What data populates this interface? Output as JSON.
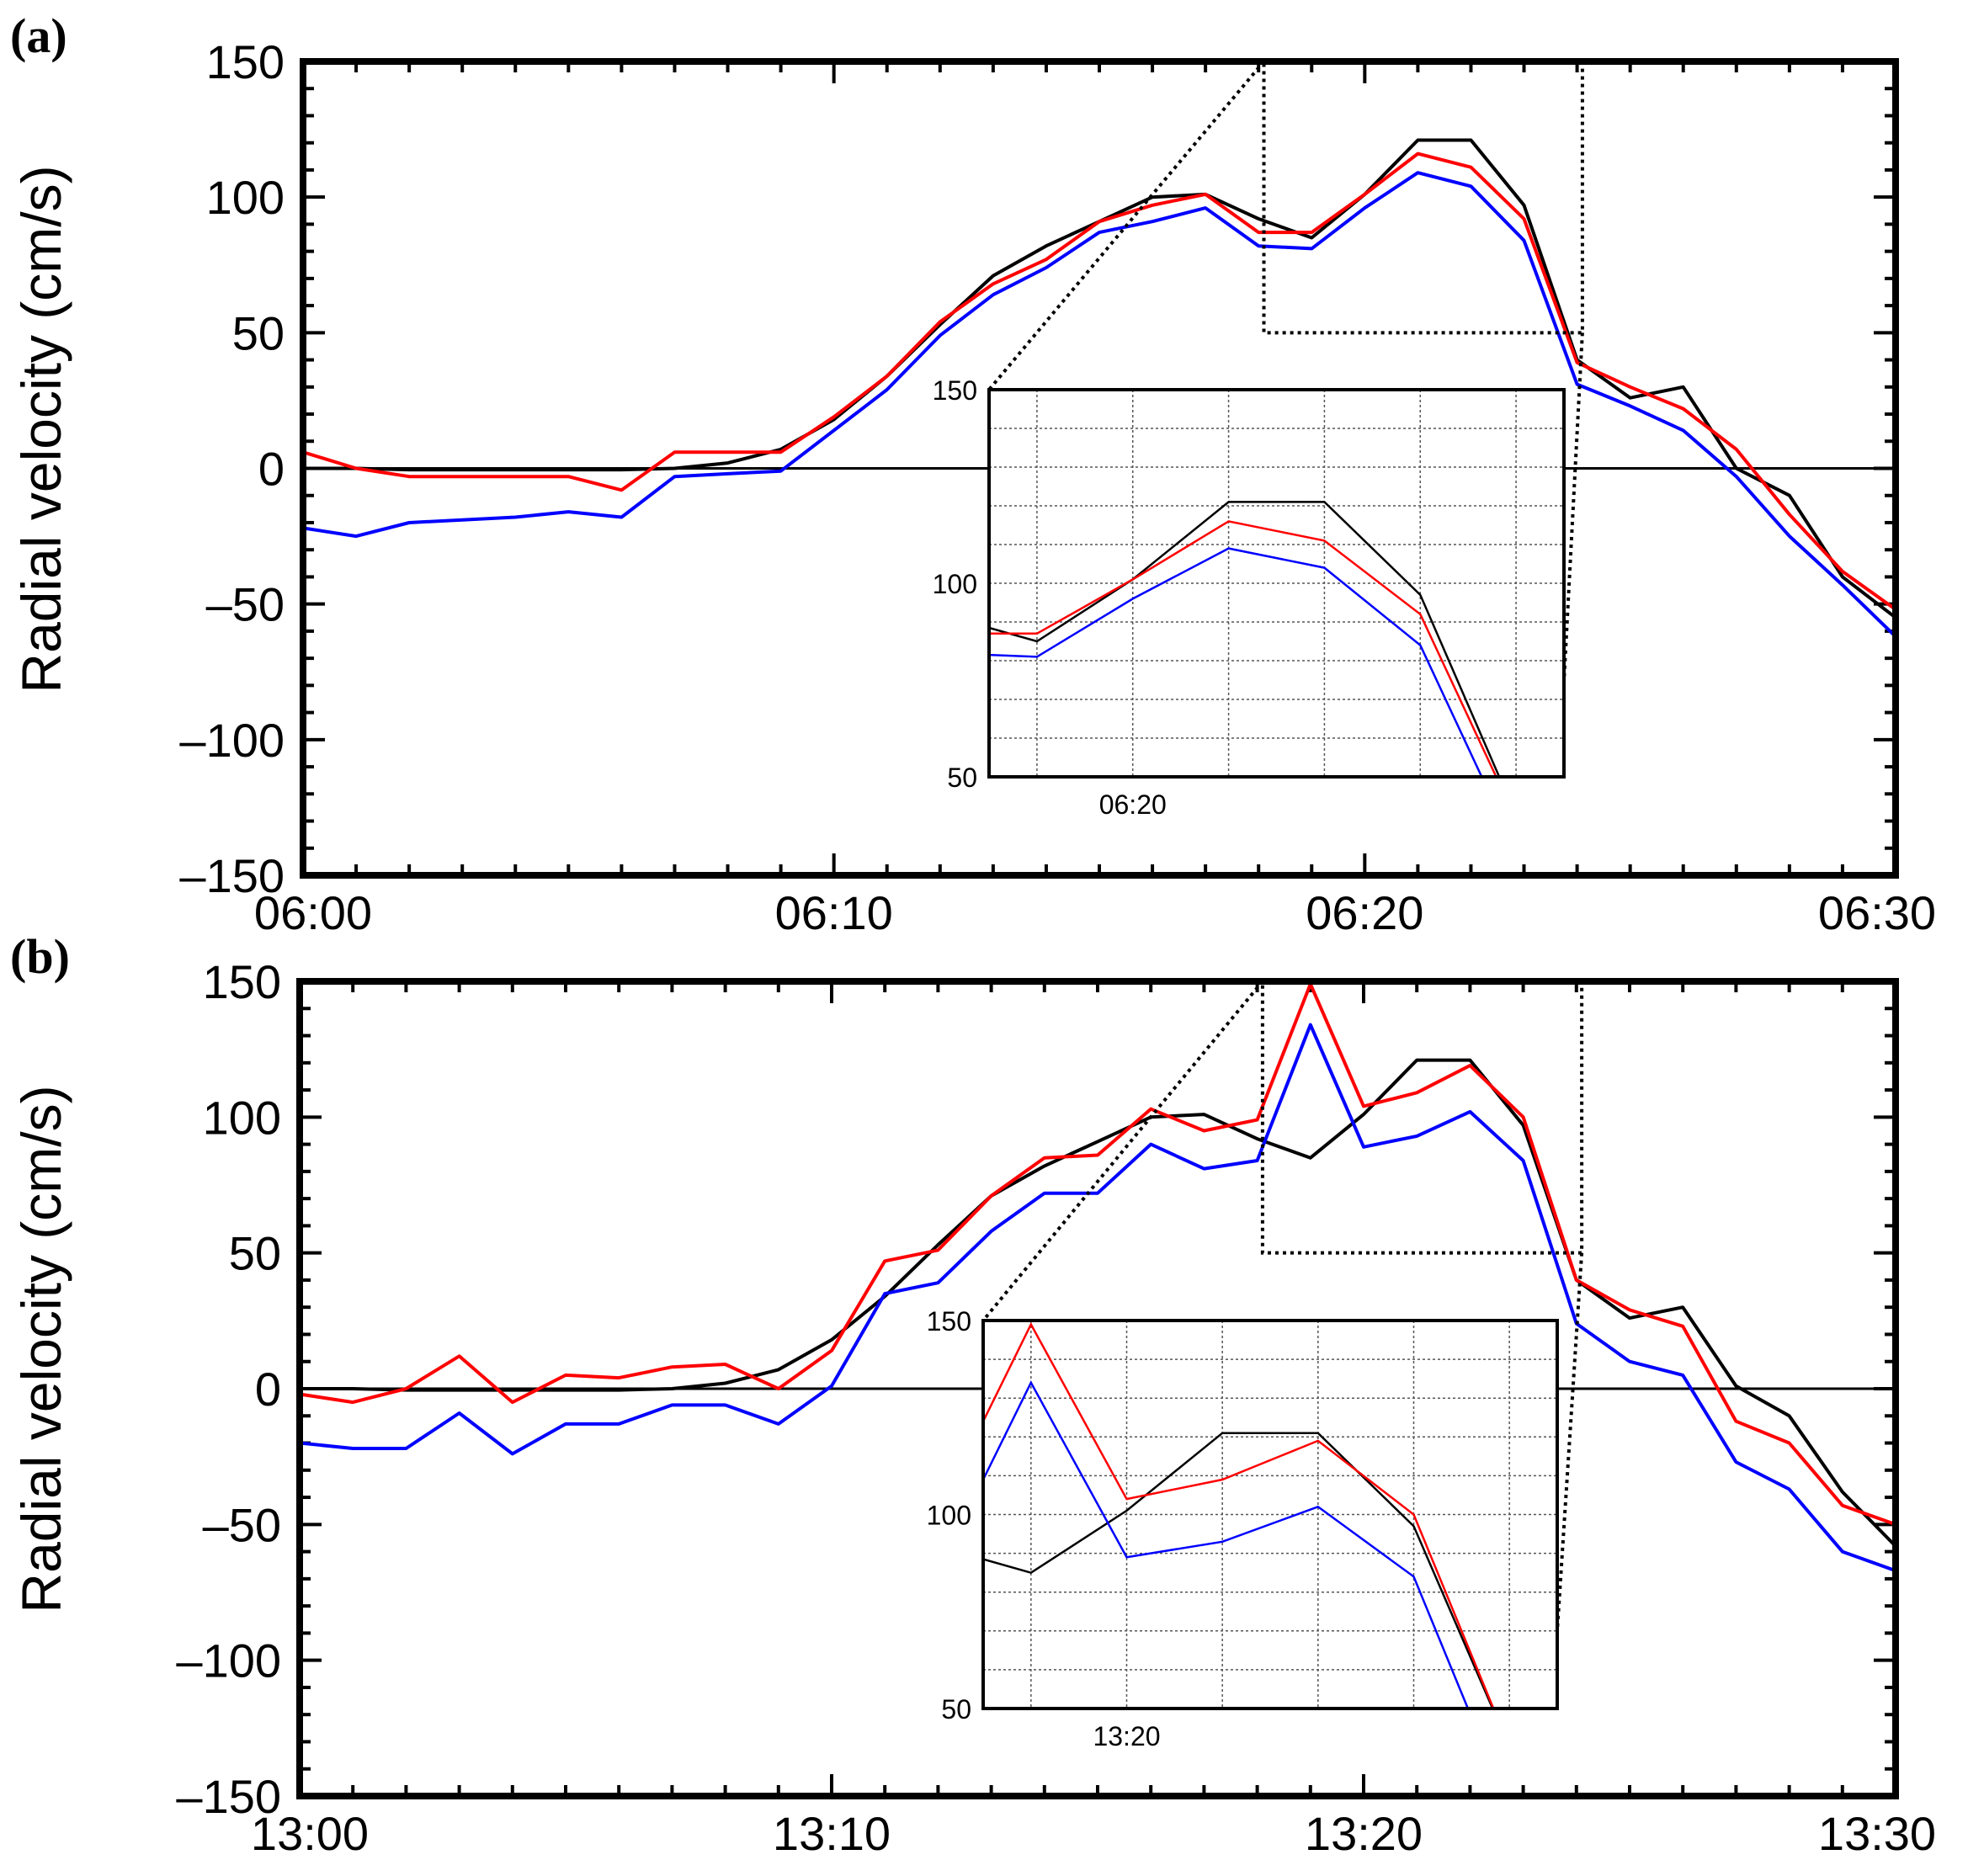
{
  "chart_data": [
    {
      "type": "line",
      "panel_label": "(a)",
      "ylabel": "Radial velocity (cm/s)",
      "xlim": [
        0,
        30
      ],
      "ylim": [
        -150,
        150
      ],
      "x_ticks": [
        "06:00",
        "06:10",
        "06:20",
        "06:30"
      ],
      "y_ticks": [
        "150",
        "100",
        "50",
        "0",
        "–50",
        "–100",
        "–150"
      ],
      "series": [
        {
          "name": "black",
          "color": "#000000",
          "x": [
            0,
            1,
            2,
            3,
            4,
            5,
            6,
            7,
            8,
            9,
            10,
            11,
            12,
            13,
            14,
            15,
            16,
            17,
            18,
            19,
            20,
            21,
            22,
            23,
            24,
            25,
            26,
            27,
            28,
            29,
            30
          ],
          "y": [
            0,
            0,
            -0.5,
            -0.5,
            -0.5,
            -0.5,
            -0.5,
            0,
            2,
            7,
            18,
            34,
            53,
            71,
            82,
            91,
            100,
            101,
            92,
            85,
            101,
            121,
            121,
            97,
            40,
            26,
            30,
            0,
            -10,
            -40,
            -55
          ]
        },
        {
          "name": "red",
          "color": "#ff0000",
          "x": [
            0,
            1,
            2,
            3,
            4,
            5,
            6,
            7,
            8,
            9,
            10,
            11,
            12,
            13,
            14,
            15,
            16,
            17,
            18,
            19,
            20,
            21,
            22,
            23,
            24,
            25,
            26,
            27,
            28,
            29,
            30
          ],
          "y": [
            6,
            0,
            -3,
            -3,
            -3,
            -3,
            -8,
            6,
            6,
            6,
            19,
            34,
            54,
            68,
            77,
            91,
            97,
            101,
            87,
            87,
            101,
            116,
            111,
            92,
            39,
            30,
            22,
            7,
            -17,
            -38,
            -52
          ]
        },
        {
          "name": "blue",
          "color": "#0000ff",
          "x": [
            0,
            1,
            2,
            3,
            4,
            5,
            6,
            7,
            8,
            9,
            10,
            11,
            12,
            13,
            14,
            15,
            16,
            17,
            18,
            19,
            20,
            21,
            22,
            23,
            24,
            25,
            26,
            27,
            28,
            29,
            30
          ],
          "y": [
            -22,
            -25,
            -20,
            -19,
            -18,
            -16,
            -18,
            -3,
            -2,
            -1,
            14,
            29,
            49,
            64,
            74,
            87,
            91,
            96,
            82,
            81,
            96,
            109,
            104,
            84,
            31,
            23,
            14,
            -3,
            -25,
            -43,
            -62
          ]
        }
      ],
      "inset": {
        "xlim": [
          18.5,
          24.5
        ],
        "ylim": [
          50,
          150
        ],
        "x_tick_label": "06:20",
        "y_ticks": [
          "150",
          "100",
          "50"
        ]
      }
    },
    {
      "type": "line",
      "panel_label": "(b)",
      "ylabel": "Radial velocity (cm/s)",
      "xlim": [
        0,
        30
      ],
      "ylim": [
        -150,
        150
      ],
      "x_ticks": [
        "13:00",
        "13:10",
        "13:20",
        "13:30"
      ],
      "y_ticks": [
        "150",
        "100",
        "50",
        "0",
        "–50",
        "–100",
        "–150"
      ],
      "series": [
        {
          "name": "black",
          "color": "#000000",
          "x": [
            0,
            1,
            2,
            3,
            4,
            5,
            6,
            7,
            8,
            9,
            10,
            11,
            12,
            13,
            14,
            15,
            16,
            17,
            18,
            19,
            20,
            21,
            22,
            23,
            24,
            25,
            26,
            27,
            28,
            29,
            30
          ],
          "y": [
            0,
            0,
            -0.5,
            -0.5,
            -0.5,
            -0.5,
            -0.5,
            0,
            2,
            7,
            18,
            34,
            53,
            71,
            82,
            91,
            100,
            101,
            92,
            85,
            101,
            121,
            121,
            97,
            40,
            26,
            30,
            1,
            -10,
            -38,
            -58
          ]
        },
        {
          "name": "red",
          "color": "#ff0000",
          "x": [
            0,
            1,
            2,
            3,
            4,
            5,
            6,
            7,
            8,
            9,
            10,
            11,
            12,
            13,
            14,
            15,
            16,
            17,
            18,
            19,
            20,
            21,
            22,
            23,
            24,
            25,
            26,
            27,
            28,
            29,
            30
          ],
          "y": [
            -2,
            -5,
            0,
            12,
            -5,
            5,
            4,
            8,
            9,
            0,
            14,
            47,
            51,
            71,
            85,
            86,
            103,
            95,
            99,
            149,
            104,
            109,
            119,
            100,
            40,
            29,
            23,
            -12,
            -20,
            -43,
            -50
          ]
        },
        {
          "name": "blue",
          "color": "#0000ff",
          "x": [
            0,
            1,
            2,
            3,
            4,
            5,
            6,
            7,
            8,
            9,
            10,
            11,
            12,
            13,
            14,
            15,
            16,
            17,
            18,
            19,
            20,
            21,
            22,
            23,
            24,
            25,
            26,
            27,
            28,
            29,
            30
          ],
          "y": [
            -20,
            -22,
            -22,
            -9,
            -24,
            -13,
            -13,
            -6,
            -6,
            -13,
            1,
            35,
            39,
            58,
            72,
            72,
            90,
            81,
            84,
            134,
            89,
            93,
            102,
            84,
            24,
            10,
            5,
            -27,
            -37,
            -60,
            -67
          ]
        }
      ],
      "inset": {
        "xlim": [
          18.5,
          24.5
        ],
        "ylim": [
          50,
          150
        ],
        "x_tick_label": "13:20",
        "y_ticks": [
          "150",
          "100",
          "50"
        ]
      }
    }
  ]
}
